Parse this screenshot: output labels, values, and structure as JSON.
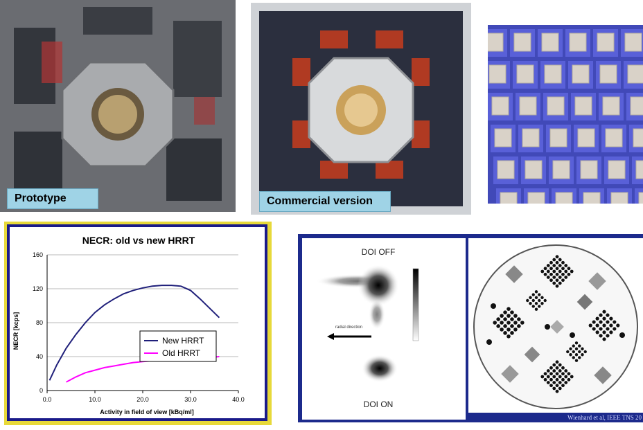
{
  "photos": {
    "prototype_caption": "Prototype",
    "commercial_caption": "Commercial version"
  },
  "doi": {
    "off_label": "DOI OFF",
    "on_label": "DOI ON",
    "arrow_label": "radial direction",
    "credit": "Wienhard et al, IEEE TNS 20"
  },
  "chart_data": {
    "type": "line",
    "title": "NECR: old vs new HRRT",
    "xlabel": "Activity in field of view [kBq/ml]",
    "ylabel": "NECR [kcps]",
    "xlim": [
      0,
      40
    ],
    "ylim": [
      0,
      160
    ],
    "xticks": [
      "0.0",
      "10.0",
      "20.0",
      "30.0",
      "40.0"
    ],
    "yticks": [
      "0",
      "40",
      "80",
      "120",
      "160"
    ],
    "grid": "horizontal",
    "legend_position": "center-right",
    "series": [
      {
        "name": "New HRRT",
        "color": "#1f1f7a",
        "points": [
          [
            0.5,
            12
          ],
          [
            2,
            30
          ],
          [
            4,
            50
          ],
          [
            6,
            66
          ],
          [
            8,
            80
          ],
          [
            10,
            92
          ],
          [
            12,
            101
          ],
          [
            14,
            108
          ],
          [
            16,
            114
          ],
          [
            18,
            118
          ],
          [
            20,
            121
          ],
          [
            22,
            123
          ],
          [
            24,
            124
          ],
          [
            26,
            124
          ],
          [
            28,
            123
          ],
          [
            30,
            118
          ],
          [
            32,
            108
          ],
          [
            34,
            97
          ],
          [
            36,
            86
          ]
        ]
      },
      {
        "name": "Old HRRT",
        "color": "#ff00ff",
        "points": [
          [
            4,
            10
          ],
          [
            6,
            16
          ],
          [
            8,
            21
          ],
          [
            10,
            24
          ],
          [
            12,
            27
          ],
          [
            14,
            29
          ],
          [
            16,
            31
          ],
          [
            18,
            33
          ],
          [
            20,
            34
          ],
          [
            22,
            35
          ],
          [
            24,
            36
          ],
          [
            26,
            37
          ],
          [
            28,
            38
          ],
          [
            30,
            38
          ],
          [
            32,
            39
          ],
          [
            34,
            39
          ],
          [
            36,
            40
          ]
        ]
      }
    ]
  }
}
